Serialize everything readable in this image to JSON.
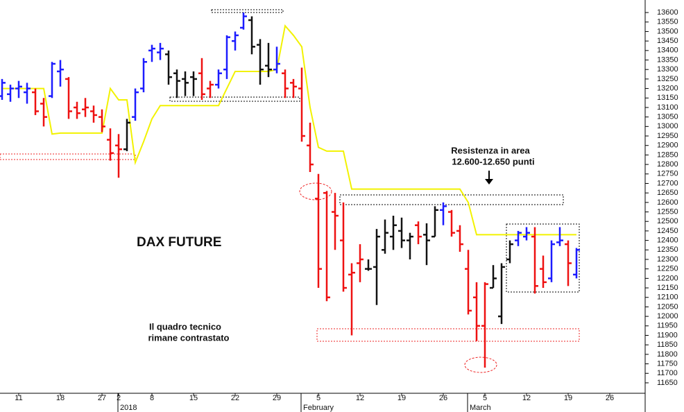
{
  "chart_data": {
    "type": "ohlc",
    "title": "DAX FUTURE",
    "annotations": [
      "Resistenza in area",
      "12.600-12.650 punti",
      "Il quadro tecnico",
      "rimane contrastato"
    ],
    "categories": [
      null,
      null,
      "11",
      null,
      null,
      null,
      null,
      "18",
      null,
      null,
      null,
      null,
      "27",
      null,
      "2",
      null,
      null,
      null,
      "8",
      null,
      null,
      null,
      null,
      "15",
      null,
      null,
      null,
      null,
      "22",
      null,
      null,
      null,
      null,
      "29",
      null,
      null,
      null,
      null,
      "5",
      null,
      null,
      null,
      null,
      "12",
      null,
      null,
      null,
      null,
      "19",
      null,
      null,
      null,
      null,
      "26",
      null,
      null,
      null,
      null,
      "5",
      null,
      null,
      null,
      null,
      "12",
      null,
      null,
      null,
      null,
      "19",
      null,
      null,
      null,
      null,
      "26",
      null,
      null,
      null,
      null
    ],
    "categories2": [
      null,
      null,
      null,
      null,
      null,
      null,
      null,
      null,
      null,
      null,
      null,
      null,
      null,
      null,
      "2018",
      null,
      null,
      null,
      null,
      null,
      null,
      null,
      null,
      null,
      null,
      null,
      null,
      null,
      null,
      null,
      null,
      null,
      null,
      null,
      null,
      null,
      "February",
      null,
      null,
      null,
      null,
      null,
      null,
      null,
      null,
      null,
      null,
      null,
      null,
      null,
      null,
      null,
      null,
      null,
      null,
      null,
      "March",
      null,
      null,
      null,
      null,
      null,
      null,
      null,
      null,
      null,
      null,
      null,
      null,
      null,
      null,
      null,
      null,
      null,
      null,
      null,
      null,
      null
    ],
    "open": [
      13160,
      13170,
      13200,
      13180,
      13180,
      13120,
      13160,
      13290,
      13250,
      13100,
      13090,
      13080,
      13050,
      12930,
      12900,
      12880,
      13050,
      13200,
      13400,
      13390,
      13380,
      13280,
      13250,
      13260,
      13280,
      13200,
      13220,
      13300,
      13450,
      13520,
      13560,
      13430,
      13320,
      13300,
      13280,
      13230,
      13200,
      12900,
      12620,
      12650,
      12550,
      12400,
      12220,
      12280,
      12250,
      12260,
      12350,
      12420,
      12450,
      12400,
      12480,
      12430,
      12420,
      12560,
      12550,
      12450,
      12250,
      12100,
      11950,
      12150,
      12000,
      12300,
      12400,
      12420,
      12420,
      12250,
      12200,
      12390,
      12380,
      12220,
      null,
      null,
      null,
      null,
      null,
      null,
      null,
      null
    ],
    "high": [
      13250,
      13220,
      13240,
      13230,
      13200,
      13150,
      13340,
      13350,
      13260,
      13130,
      13150,
      13110,
      13090,
      12990,
      12960,
      13040,
      13200,
      13360,
      13430,
      13440,
      13400,
      13300,
      13290,
      13290,
      13360,
      13240,
      13300,
      13480,
      13500,
      13600,
      13580,
      13460,
      13440,
      13420,
      13300,
      13250,
      13310,
      13020,
      12750,
      12660,
      12650,
      12600,
      12280,
      12380,
      12300,
      12460,
      12510,
      12530,
      12520,
      12440,
      12500,
      12490,
      12580,
      12600,
      12560,
      12480,
      12350,
      12180,
      12180,
      12270,
      12280,
      12400,
      12450,
      12470,
      12470,
      12320,
      12400,
      12470,
      12400,
      12360,
      null,
      null,
      null,
      null,
      null,
      null,
      null,
      null
    ],
    "low": [
      13140,
      13130,
      13150,
      13120,
      13060,
      13000,
      13150,
      13210,
      13040,
      13040,
      13050,
      13020,
      12970,
      12820,
      12730,
      12870,
      13030,
      13180,
      13340,
      13350,
      13220,
      13150,
      13160,
      13160,
      13140,
      13150,
      13200,
      13250,
      13400,
      13510,
      13380,
      13220,
      13260,
      13280,
      13150,
      13150,
      12920,
      12760,
      12150,
      12080,
      12350,
      12130,
      11900,
      12180,
      12240,
      12060,
      12330,
      12350,
      12360,
      12300,
      12380,
      12270,
      12420,
      12480,
      12420,
      12340,
      12010,
      11870,
      11730,
      12150,
      11960,
      12280,
      12370,
      12400,
      12120,
      12150,
      12180,
      12370,
      12160,
      12200,
      null,
      null,
      null,
      null,
      null,
      null,
      null,
      null
    ],
    "close": [
      13230,
      13200,
      13210,
      13200,
      13080,
      13050,
      13330,
      13300,
      13080,
      13070,
      13100,
      13060,
      13000,
      12860,
      12880,
      13020,
      13180,
      13340,
      13410,
      13410,
      13260,
      13240,
      13230,
      13250,
      13170,
      13220,
      13280,
      13470,
      13480,
      13580,
      13420,
      13300,
      13300,
      13330,
      13200,
      13210,
      12950,
      12800,
      12250,
      12100,
      12530,
      12150,
      12230,
      12300,
      12250,
      12420,
      12440,
      12480,
      12400,
      12420,
      12420,
      12400,
      12560,
      12580,
      12440,
      12380,
      12030,
      11950,
      12170,
      12200,
      12260,
      12380,
      12440,
      12440,
      12160,
      12180,
      12380,
      12400,
      12280,
      12350,
      null,
      null,
      null,
      null,
      null,
      null,
      null,
      null
    ],
    "bar_colors": [
      "#1c1cff",
      "#1c1cff",
      "#1c1cff",
      "#1c1cff",
      "#ee1111",
      "#ee1111",
      "#1c1cff",
      "#1c1cff",
      "#ee1111",
      "#ee1111",
      "#ee1111",
      "#ee1111",
      "#ee1111",
      "#ee1111",
      "#ee1111",
      "#111111",
      "#1c1cff",
      "#1c1cff",
      "#1c1cff",
      "#1c1cff",
      "#111111",
      "#111111",
      "#111111",
      "#111111",
      "#ee1111",
      "#ee1111",
      "#1c1cff",
      "#1c1cff",
      "#1c1cff",
      "#1c1cff",
      "#111111",
      "#111111",
      "#111111",
      "#1c1cff",
      "#ee1111",
      "#ee1111",
      "#ee1111",
      "#ee1111",
      "#ee1111",
      "#ee1111",
      "#ee1111",
      "#ee1111",
      "#ee1111",
      "#ee1111",
      "#111111",
      "#111111",
      "#111111",
      "#111111",
      "#111111",
      "#111111",
      "#ee1111",
      "#111111",
      "#111111",
      "#1c1cff",
      "#ee1111",
      "#ee1111",
      "#ee1111",
      "#ee1111",
      "#ee1111",
      "#111111",
      "#111111",
      "#111111",
      "#1c1cff",
      "#1c1cff",
      "#ee1111",
      "#ee1111",
      "#1c1cff",
      "#1c1cff",
      "#ee1111",
      "#1c1cff",
      null,
      null,
      null,
      null,
      null,
      null,
      null,
      null
    ],
    "line": {
      "color": "#f2f200",
      "values": [
        13200,
        13200,
        13200,
        13200,
        13200,
        13200,
        12960,
        12965,
        12965,
        12965,
        12965,
        12965,
        12965,
        13200,
        13140,
        13140,
        12810,
        12920,
        13040,
        13110,
        13110,
        13110,
        13110,
        13110,
        13110,
        13110,
        13110,
        13200,
        13290,
        13290,
        13290,
        13290,
        13290,
        13300,
        13530,
        13480,
        13420,
        13100,
        12890,
        12870,
        12870,
        12870,
        12670,
        12670,
        12670,
        12670,
        12670,
        12670,
        12670,
        12670,
        12670,
        12670,
        12670,
        12670,
        12670,
        12670,
        12600,
        12430,
        12430,
        12430,
        12430,
        12430,
        12430,
        12430,
        12430,
        12430,
        12430,
        12430,
        12430,
        12430,
        null,
        null,
        null,
        null,
        null,
        null,
        null,
        null
      ]
    },
    "ylim": [
      11595,
      13666
    ],
    "yticks": [
      11650,
      11700,
      11750,
      11800,
      11850,
      11900,
      11950,
      12000,
      12050,
      12100,
      12150,
      12200,
      12250,
      12300,
      12350,
      12400,
      12450,
      12500,
      12550,
      12600,
      12650,
      12700,
      12750,
      12800,
      12850,
      12900,
      12950,
      13000,
      13050,
      13100,
      13150,
      13200,
      13250,
      13300,
      13350,
      13400,
      13450,
      13500,
      13550,
      13600
    ],
    "grid": false
  }
}
